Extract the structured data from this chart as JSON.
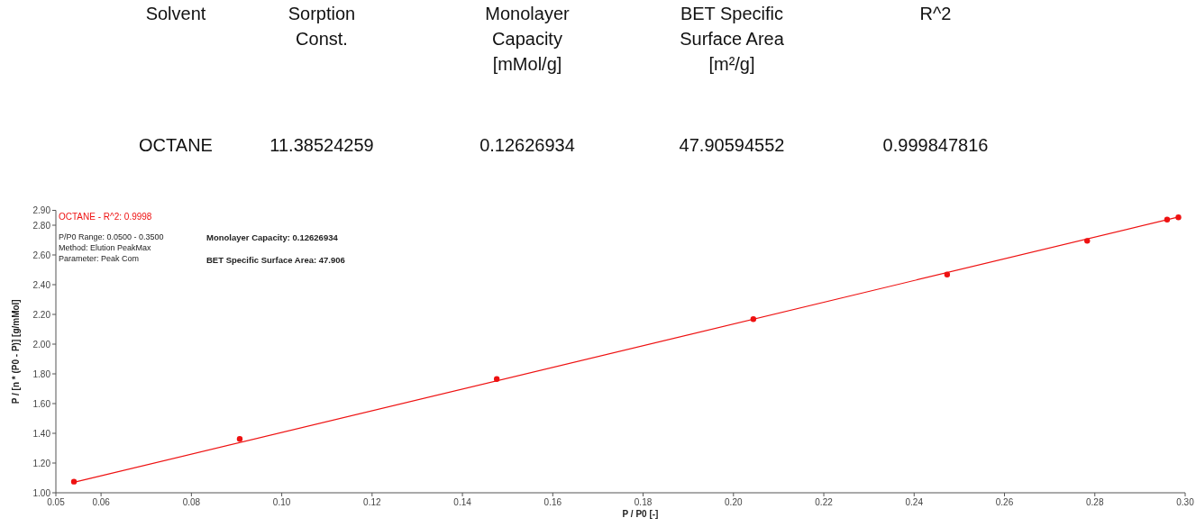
{
  "chart_data": [
    {
      "type": "other",
      "annotations": [
        "Solvent",
        "Sorption Const.",
        "Monolayer Capacity [mMol/g]",
        "BET Specific Surface Area [m²/g]",
        "R^2",
        "OCTANE",
        "11.38524259",
        "0.12626934",
        "47.90594552",
        "0.999847816"
      ]
    },
    {
      "type": "scatter",
      "xlabel": "P / P0 [-]",
      "ylabel": "P / [n * (P0 - P)] [g/mMol]",
      "xlim": [
        0.05,
        0.3
      ],
      "ylim": [
        1,
        2.9
      ],
      "xticks": [
        {
          "value": 0.05,
          "label": "0.05"
        },
        {
          "value": 0.06,
          "label": "0.06"
        },
        {
          "value": 0.08,
          "label": "0.08"
        },
        {
          "value": 0.1,
          "label": "0.10"
        },
        {
          "value": 0.12,
          "label": "0.12"
        },
        {
          "value": 0.14,
          "label": "0.14"
        },
        {
          "value": 0.16,
          "label": "0.16"
        },
        {
          "value": 0.18,
          "label": "0.18"
        },
        {
          "value": 0.2,
          "label": "0.20"
        },
        {
          "value": 0.22,
          "label": "0.22"
        },
        {
          "value": 0.24,
          "label": "0.24"
        },
        {
          "value": 0.26,
          "label": "0.26"
        },
        {
          "value": 0.28,
          "label": "0.28"
        },
        {
          "value": 0.3,
          "label": "0.30"
        }
      ],
      "yticks": [
        {
          "value": 1,
          "label": "1.00"
        },
        {
          "value": 1.2,
          "label": "1.20"
        },
        {
          "value": 1.4,
          "label": "1.40"
        },
        {
          "value": 1.6,
          "label": "1.60"
        },
        {
          "value": 1.8,
          "label": "1.80"
        },
        {
          "value": 2,
          "label": "2.00"
        },
        {
          "value": 2.2,
          "label": "2.20"
        },
        {
          "value": 2.4,
          "label": "2.40"
        },
        {
          "value": 2.6,
          "label": "2.60"
        },
        {
          "value": 2.8,
          "label": "2.80"
        },
        {
          "value": 2.9,
          "label": "2.90"
        }
      ],
      "marker": "circle",
      "line_style": "solid",
      "annotations": [
        "P/P0 Range: 0.0500 - 0.3500",
        "Method: Elution PeakMax",
        "Parameter: Peak Com",
        "Monolayer Capacity: 0.12626934",
        "BET Specific Surface Area: 47.906"
      ],
      "series": [
        {
          "type": "scatter",
          "name": "OCTANE - R^2: 0.9998",
          "color": "#ee1111",
          "x": [
            0.054,
            0.0907,
            0.1476,
            0.2044,
            0.2473,
            0.2783,
            0.296,
            0.2985
          ],
          "values": [
            1.075,
            1.362,
            1.765,
            2.168,
            2.468,
            2.695,
            2.838,
            2.853
          ]
        },
        {
          "type": "line",
          "marker": "none",
          "color": "#ee1111",
          "x": [
            0.054,
            0.2985
          ],
          "values": [
            1.07,
            2.855
          ]
        }
      ]
    }
  ]
}
